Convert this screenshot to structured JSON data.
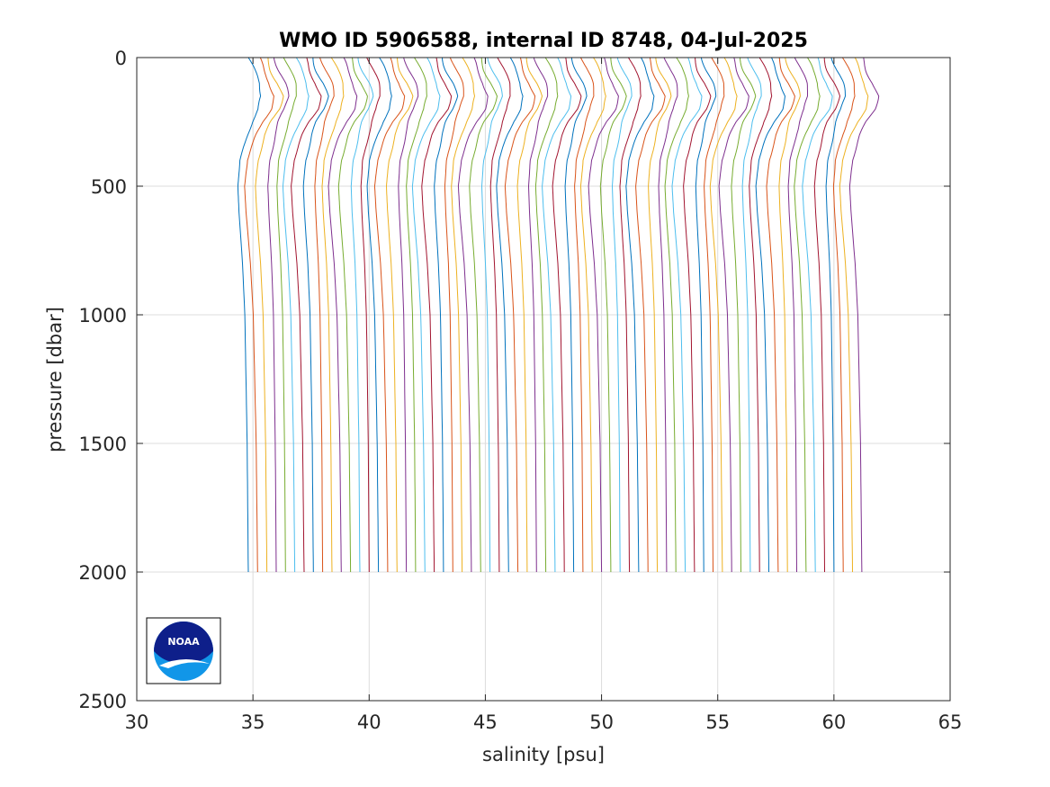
{
  "chart_data": {
    "type": "line",
    "title": "WMO ID 5906588, internal ID 8748, 04-Jul-2025",
    "xlabel": "salinity [psu]",
    "ylabel": "pressure [dbar]",
    "xlim": [
      30,
      65
    ],
    "ylim": [
      0,
      2500
    ],
    "y_reversed": true,
    "xticks": [
      30,
      35,
      40,
      45,
      50,
      55,
      60,
      65
    ],
    "yticks": [
      0,
      500,
      1000,
      1500,
      2000,
      2500
    ],
    "grid": true,
    "legend": "none",
    "logo": "NOAA",
    "profile_style": "successive profiles, each offset by about 0.4 psu",
    "series_colors": [
      "#0072BD",
      "#D95319",
      "#EDB120",
      "#7E2F8E",
      "#77AC30",
      "#4DBEEE",
      "#A2142F"
    ],
    "profiles": {
      "count": 67,
      "surface_x_first": 34.9,
      "surface_x_step": 0.4,
      "deep_x_first": 34.8,
      "deep_x_step": 0.4,
      "max_pressure_typical": 2000,
      "shape_pressure": [
        0,
        50,
        100,
        150,
        200,
        250,
        300,
        400,
        500,
        600,
        800,
        1000,
        1500,
        2000
      ],
      "shape_salinity_anomaly": [
        0.0,
        0.2,
        0.45,
        0.6,
        0.45,
        0.15,
        -0.05,
        -0.35,
        -0.45,
        -0.4,
        -0.25,
        -0.15,
        -0.05,
        0.0
      ]
    }
  },
  "logo": {
    "text": "NOAA"
  }
}
